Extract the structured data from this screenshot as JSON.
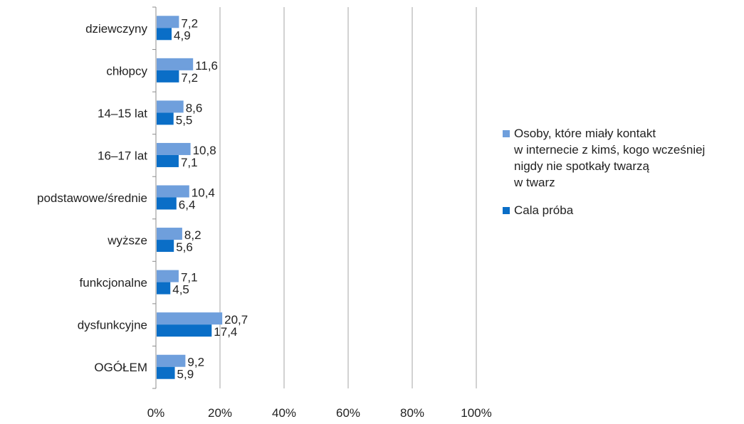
{
  "chart_data": {
    "type": "bar",
    "orientation": "horizontal",
    "categories": [
      "dziewczyny",
      "chłopcy",
      "14–15 lat",
      "16–17 lat",
      "podstawowe/średnie",
      "wyższe",
      "funkcjonalne",
      "dysfunkcyjne",
      "OGÓŁEM"
    ],
    "series": [
      {
        "name": "Osoby, które miały kontakt\nw internecie z kimś, kogo wcześniej\nnigdy nie spotkały twarzą\nw twarz",
        "values": [
          7.2,
          11.6,
          8.6,
          10.8,
          10.4,
          8.2,
          7.1,
          20.7,
          9.2
        ],
        "labels": [
          "7,2",
          "11,6",
          "8,6",
          "10,8",
          "10,4",
          "8,2",
          "7,1",
          "20,7",
          "9,2"
        ],
        "color": "#6f9fdc"
      },
      {
        "name": "Cala próba",
        "values": [
          4.9,
          7.2,
          5.5,
          7.1,
          6.4,
          5.6,
          4.5,
          17.4,
          5.9
        ],
        "labels": [
          "4,9",
          "7,2",
          "5,5",
          "7,1",
          "6,4",
          "5,6",
          "4,5",
          "17,4",
          "5,9"
        ],
        "color": "#0a6ec7"
      }
    ],
    "x_ticks": [
      0,
      20,
      40,
      60,
      80,
      100
    ],
    "x_tick_labels": [
      "0%",
      "20%",
      "40%",
      "60%",
      "80%",
      "100%"
    ],
    "xlim": [
      0,
      100
    ],
    "grid": "vertical",
    "legend_position": "right"
  }
}
